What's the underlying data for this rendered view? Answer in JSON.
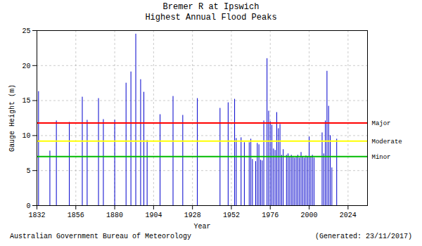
{
  "chart_data": {
    "type": "bar",
    "title": "Bremer R at Ipswich",
    "subtitle": "Highest Annual Flood Peaks",
    "xlabel": "Year",
    "ylabel": "Gauge Height (m)",
    "footer": [
      "Australian Government Bureau of Meteorology",
      "(Generated: 23/11/2017)"
    ],
    "color": "#0000cc",
    "x": [
      1833,
      1840,
      1844,
      1852,
      1860,
      1863,
      1870,
      1873,
      1880,
      1887,
      1890,
      1893,
      1896,
      1898,
      1900,
      1908,
      1916,
      1922,
      1931,
      1945,
      1950,
      1954,
      1955,
      1958,
      1960,
      1963,
      1964,
      1965,
      1967,
      1968,
      1969,
      1970,
      1971,
      1972,
      1974,
      1975,
      1976,
      1977,
      1978,
      1979,
      1980,
      1981,
      1982,
      1983,
      1984,
      1986,
      1987,
      1988,
      1989,
      1990,
      1991,
      1992,
      1993,
      1994,
      1995,
      1996,
      1997,
      1998,
      1999,
      2000,
      2001,
      2002,
      2003,
      2008,
      2009,
      2010,
      2011,
      2012,
      2013,
      2014,
      2017
    ],
    "values": [
      16.3,
      7.8,
      12.1,
      11.9,
      15.5,
      12.2,
      15.3,
      12.3,
      12.2,
      17.5,
      19.1,
      24.5,
      18.0,
      16.2,
      9.3,
      13.0,
      15.6,
      12.9,
      15.3,
      13.9,
      14.7,
      15.2,
      9.6,
      9.7,
      9.0,
      9.0,
      9.5,
      6.6,
      6.3,
      8.9,
      8.7,
      6.5,
      6.4,
      12.1,
      21.0,
      13.5,
      12.0,
      11.5,
      8.1,
      7.9,
      13.3,
      11.0,
      11.6,
      7.2,
      8.0,
      7.2,
      7.4,
      7.0,
      7.2,
      6.9,
      6.8,
      7.0,
      7.2,
      6.8,
      7.6,
      7.0,
      6.8,
      7.1,
      7.0,
      9.8,
      7.0,
      7.2,
      6.8,
      10.4,
      7.4,
      12.1,
      19.2,
      14.2,
      10.0,
      5.4,
      9.5
    ],
    "annotations": [
      {
        "text": "Major",
        "y": 11.8,
        "color": "#ff0000"
      },
      {
        "text": "Moderate",
        "y": 9.2,
        "color": "#ffff00"
      },
      {
        "text": "Minor",
        "y": 7.0,
        "color": "#00bb00"
      }
    ],
    "xlim": [
      1832,
      2036
    ],
    "ylim": [
      0,
      25
    ],
    "xticks": [
      1832,
      1856,
      1880,
      1904,
      1928,
      1952,
      1976,
      2000,
      2024
    ],
    "yticks": [
      0,
      5,
      10,
      15,
      20,
      25
    ],
    "grid": true
  }
}
